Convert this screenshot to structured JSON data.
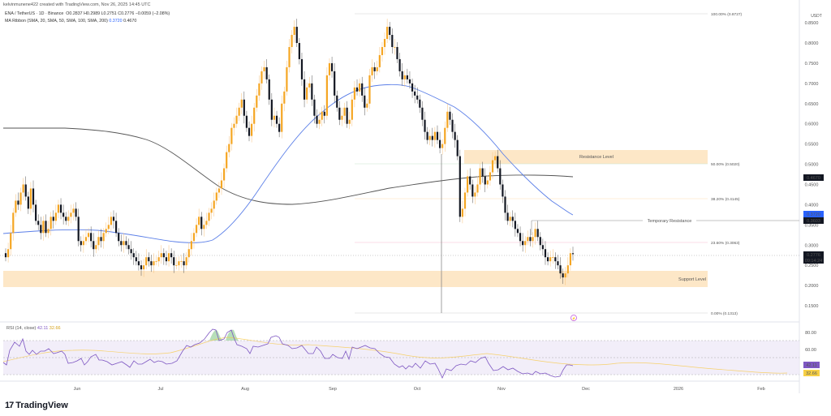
{
  "header": {
    "credit": "kelvinmunene422 created with TradingView.com, Nov 26, 2025 14:45 UTC",
    "symbol_line": "ENA / TetherUS · 1D · Binance",
    "ohlc": {
      "open": "O0.2837",
      "high": "H0.2989",
      "low": "L0.2751",
      "close": "C0.2776",
      "change": "−0.0059 (−2.08%)"
    },
    "ma_label": "MA Ribbon (SMA, 20, SMA, 50, SMA, 100, SMA, 200)",
    "ma_val_1": "0.3720",
    "ma_val_2": "0.4670"
  },
  "price_axis": {
    "currency": "USDT",
    "ticks": [
      "0.8500",
      "0.8000",
      "0.7500",
      "0.7000",
      "0.6500",
      "0.6000",
      "0.5500",
      "0.5000",
      "0.4500",
      "0.4000",
      "0.3500",
      "0.3000",
      "0.2500",
      "0.2000",
      "0.1500"
    ],
    "badges": [
      {
        "label": "0.4670",
        "color": "#131722"
      },
      {
        "label": "0.3720",
        "color": "#2962ff"
      },
      {
        "label": "0.3603",
        "color": "#131722"
      },
      {
        "label": "0.2776",
        "sub": "09:14:24",
        "color": "#131722"
      }
    ]
  },
  "time_axis": {
    "ticks": [
      "Jun",
      "Jul",
      "Aug",
      "Sep",
      "Oct",
      "Nov",
      "Dec",
      "2026",
      "Feb"
    ]
  },
  "annotations": {
    "resistance": "Resistance Level",
    "support": "Support Level",
    "temp_resistance": "Temporary Resistance",
    "fib_100": "100.00% (0.8727)",
    "fib_50": "50.00% (0.5020)",
    "fib_382": "38.20% (0.4145)",
    "fib_236": "23.60% (0.3063)",
    "fib_0": "0.00% (0.1313)"
  },
  "rsi": {
    "label": "RSI (14, close)",
    "value": "42.11",
    "ma_value": "32.66",
    "ticks": [
      "80.00",
      "60.00"
    ]
  },
  "brand": {
    "name": "TradingView",
    "logo": "17"
  },
  "chart_data": [
    {
      "type": "candlestick",
      "title": "ENA / TetherUS · 1D · Binance",
      "ylabel": "USDT",
      "ylim": [
        0.13,
        0.87
      ],
      "x_ticks": [
        "Jun",
        "Jul",
        "Aug",
        "Sep",
        "Oct",
        "Nov",
        "Dec",
        "2026",
        "Feb"
      ],
      "last": {
        "open": 0.2837,
        "high": 0.2989,
        "low": 0.2751,
        "close": 0.2776,
        "change": -0.0059,
        "change_pct": -2.08
      },
      "approx_closes": {
        "May-end": 0.28,
        "mid-Jun": 0.33,
        "late-Jun": 0.24,
        "Jul-mid": 0.45,
        "Jul-end": 0.65,
        "Aug-early": 0.82,
        "Aug-mid": 0.62,
        "Aug-end": 0.7,
        "Sep-mid": 0.82,
        "Sep-end": 0.6,
        "Oct-early": 0.62,
        "Oct-10": 0.36,
        "Oct-end": 0.51,
        "Nov-mid": 0.3,
        "Nov-25": 0.2776
      },
      "series": [
        {
          "name": "SMA 50",
          "color": "#5b7fe8",
          "last": 0.372
        },
        {
          "name": "SMA 200",
          "color": "#555555",
          "last": 0.467
        }
      ],
      "levels": [
        {
          "name": "Resistance Level",
          "from": 0.502,
          "to": 0.535
        },
        {
          "name": "Support Level",
          "from": 0.195,
          "to": 0.235
        },
        {
          "name": "Temporary Resistance",
          "value": 0.3603
        }
      ],
      "fibonacci": [
        {
          "level": "100.00%",
          "value": 0.8727
        },
        {
          "level": "50.00%",
          "value": 0.502
        },
        {
          "level": "38.20%",
          "value": 0.4145
        },
        {
          "level": "23.60%",
          "value": 0.3063
        },
        {
          "level": "0.00%",
          "value": 0.1313
        }
      ]
    },
    {
      "type": "line",
      "title": "RSI (14, close)",
      "ylim": [
        20,
        90
      ],
      "bands": [
        30,
        50,
        70
      ],
      "series": [
        {
          "name": "RSI",
          "color": "#7e57c2",
          "last": 42.11
        },
        {
          "name": "RSI MA",
          "color": "#f7c948",
          "last": 32.66
        }
      ],
      "overbought_peaks": [
        "late-Jul",
        "early-Aug"
      ]
    }
  ]
}
